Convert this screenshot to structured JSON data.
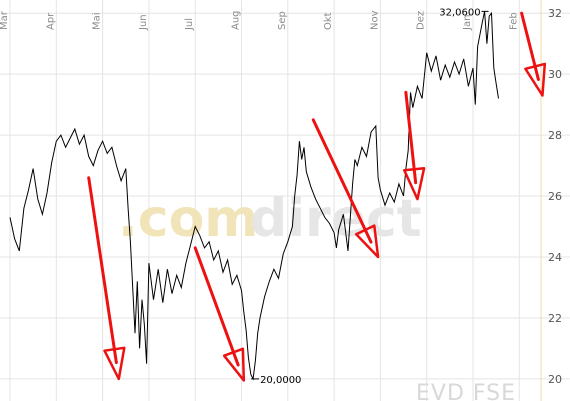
{
  "chart_data": {
    "type": "line",
    "title": "",
    "xlabel": "",
    "ylabel": "",
    "months": [
      "Mar",
      "Apr",
      "Mai",
      "Jun",
      "Jul",
      "Aug",
      "Sep",
      "Okt",
      "Nov",
      "Dez",
      "Jan",
      "Feb"
    ],
    "ylim": [
      19.8,
      32.4
    ],
    "y_ticks": [
      20,
      22,
      24,
      26,
      28,
      30,
      32
    ],
    "grid": true,
    "watermark": [
      ".com",
      "direct"
    ],
    "symbol": "EVD FSE",
    "max_label": "32,0600",
    "min_label": "20,0000",
    "max_value": 32.06,
    "min_value": 20.0,
    "series": [
      {
        "color": "#000000",
        "points": [
          [
            0.0,
            25.3
          ],
          [
            0.1,
            24.6
          ],
          [
            0.2,
            24.2
          ],
          [
            0.3,
            25.6
          ],
          [
            0.4,
            26.2
          ],
          [
            0.5,
            26.9
          ],
          [
            0.6,
            25.9
          ],
          [
            0.7,
            25.4
          ],
          [
            0.8,
            26.1
          ],
          [
            0.9,
            27.1
          ],
          [
            1.0,
            27.8
          ],
          [
            1.1,
            28.0
          ],
          [
            1.2,
            27.6
          ],
          [
            1.3,
            27.9
          ],
          [
            1.4,
            28.2
          ],
          [
            1.5,
            27.7
          ],
          [
            1.6,
            28.0
          ],
          [
            1.7,
            27.3
          ],
          [
            1.8,
            27.0
          ],
          [
            1.9,
            27.5
          ],
          [
            2.0,
            27.8
          ],
          [
            2.1,
            27.4
          ],
          [
            2.2,
            27.6
          ],
          [
            2.3,
            27.0
          ],
          [
            2.4,
            26.5
          ],
          [
            2.5,
            26.9
          ],
          [
            2.55,
            25.6
          ],
          [
            2.6,
            24.5
          ],
          [
            2.65,
            23.0
          ],
          [
            2.7,
            21.5
          ],
          [
            2.75,
            23.2
          ],
          [
            2.8,
            21.0
          ],
          [
            2.85,
            22.6
          ],
          [
            2.9,
            21.8
          ],
          [
            2.95,
            20.5
          ],
          [
            3.0,
            23.8
          ],
          [
            3.1,
            22.6
          ],
          [
            3.2,
            23.6
          ],
          [
            3.3,
            22.5
          ],
          [
            3.4,
            23.6
          ],
          [
            3.5,
            22.8
          ],
          [
            3.6,
            23.4
          ],
          [
            3.7,
            23.0
          ],
          [
            3.8,
            23.8
          ],
          [
            3.9,
            24.4
          ],
          [
            4.0,
            25.0
          ],
          [
            4.1,
            24.7
          ],
          [
            4.2,
            24.3
          ],
          [
            4.3,
            24.5
          ],
          [
            4.4,
            23.9
          ],
          [
            4.5,
            24.2
          ],
          [
            4.6,
            23.5
          ],
          [
            4.7,
            23.9
          ],
          [
            4.8,
            23.1
          ],
          [
            4.9,
            23.4
          ],
          [
            5.0,
            22.9
          ],
          [
            5.05,
            22.2
          ],
          [
            5.1,
            21.6
          ],
          [
            5.15,
            20.7
          ],
          [
            5.2,
            20.15
          ],
          [
            5.25,
            20.0
          ],
          [
            5.3,
            20.6
          ],
          [
            5.35,
            21.5
          ],
          [
            5.4,
            22.0
          ],
          [
            5.5,
            22.7
          ],
          [
            5.6,
            23.2
          ],
          [
            5.7,
            23.6
          ],
          [
            5.8,
            23.3
          ],
          [
            5.9,
            24.1
          ],
          [
            6.0,
            24.5
          ],
          [
            6.1,
            25.0
          ],
          [
            6.15,
            26.0
          ],
          [
            6.2,
            26.7
          ],
          [
            6.25,
            27.8
          ],
          [
            6.3,
            27.2
          ],
          [
            6.35,
            27.6
          ],
          [
            6.4,
            26.8
          ],
          [
            6.5,
            26.3
          ],
          [
            6.6,
            25.9
          ],
          [
            6.7,
            25.6
          ],
          [
            6.8,
            25.3
          ],
          [
            6.9,
            25.1
          ],
          [
            7.0,
            24.8
          ],
          [
            7.05,
            24.3
          ],
          [
            7.1,
            24.9
          ],
          [
            7.2,
            25.4
          ],
          [
            7.3,
            24.2
          ],
          [
            7.35,
            25.3
          ],
          [
            7.4,
            26.4
          ],
          [
            7.45,
            27.2
          ],
          [
            7.5,
            27.0
          ],
          [
            7.6,
            27.6
          ],
          [
            7.7,
            27.3
          ],
          [
            7.8,
            28.1
          ],
          [
            7.9,
            28.3
          ],
          [
            7.95,
            26.6
          ],
          [
            8.0,
            26.2
          ],
          [
            8.1,
            25.7
          ],
          [
            8.2,
            26.1
          ],
          [
            8.3,
            25.8
          ],
          [
            8.4,
            26.4
          ],
          [
            8.5,
            26.0
          ],
          [
            8.55,
            26.9
          ],
          [
            8.6,
            27.5
          ],
          [
            8.65,
            29.4
          ],
          [
            8.7,
            28.9
          ],
          [
            8.8,
            29.6
          ],
          [
            8.9,
            29.2
          ],
          [
            9.0,
            30.7
          ],
          [
            9.1,
            30.1
          ],
          [
            9.2,
            30.6
          ],
          [
            9.3,
            29.8
          ],
          [
            9.4,
            30.3
          ],
          [
            9.5,
            29.9
          ],
          [
            9.6,
            30.4
          ],
          [
            9.7,
            30.0
          ],
          [
            9.8,
            30.5
          ],
          [
            9.9,
            29.6
          ],
          [
            10.0,
            30.2
          ],
          [
            10.05,
            29.0
          ],
          [
            10.1,
            30.9
          ],
          [
            10.2,
            31.7
          ],
          [
            10.25,
            32.06
          ],
          [
            10.3,
            31.0
          ],
          [
            10.35,
            31.9
          ],
          [
            10.4,
            32.0
          ],
          [
            10.45,
            30.2
          ],
          [
            10.5,
            29.7
          ],
          [
            10.55,
            29.2
          ]
        ]
      }
    ],
    "annotation_arrows": [
      {
        "from": [
          1.7,
          26.6
        ],
        "to": [
          2.35,
          20.0
        ]
      },
      {
        "from": [
          4.0,
          24.3
        ],
        "to": [
          5.05,
          19.95
        ]
      },
      {
        "from": [
          6.55,
          28.5
        ],
        "to": [
          7.95,
          24.0
        ]
      },
      {
        "from": [
          8.55,
          29.4
        ],
        "to": [
          8.8,
          25.9
        ]
      },
      {
        "from": [
          11.05,
          32.0
        ],
        "to": [
          11.5,
          29.3
        ]
      }
    ]
  }
}
